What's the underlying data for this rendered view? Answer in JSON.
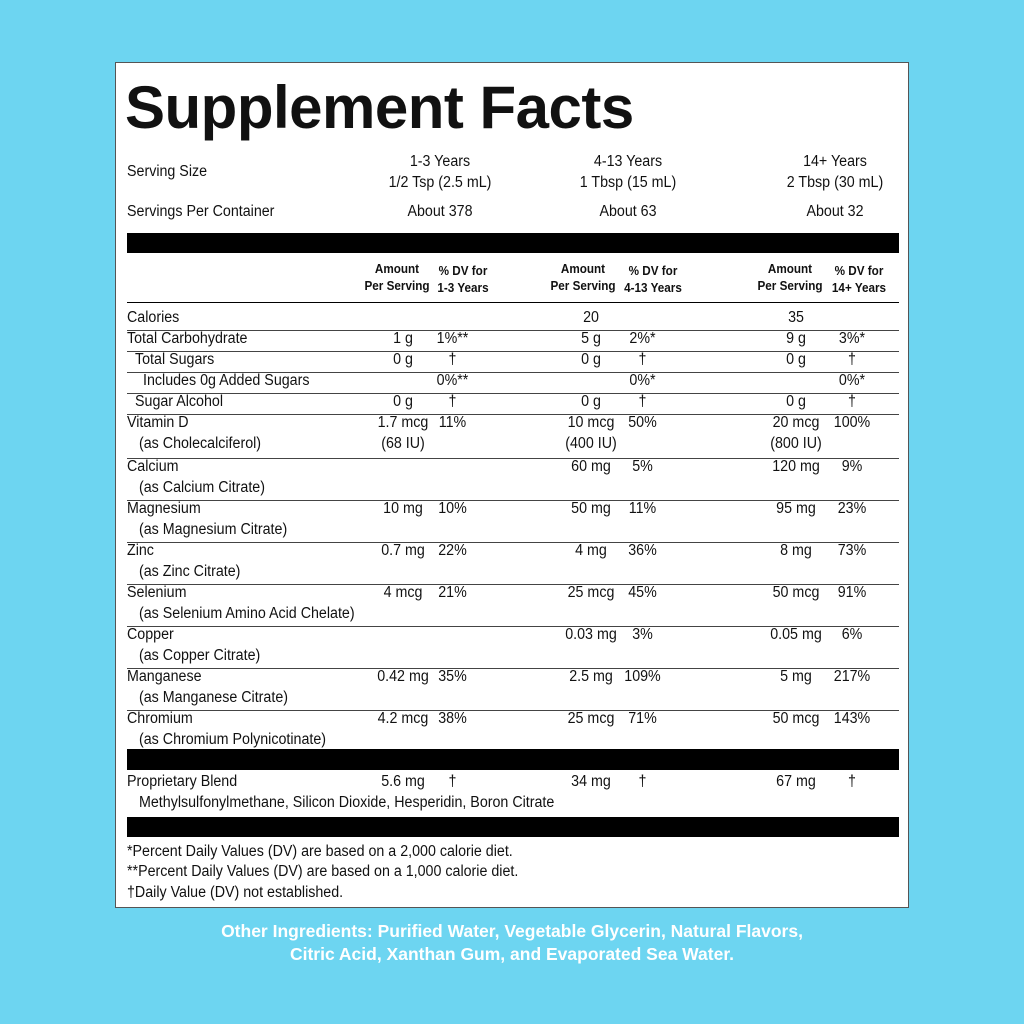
{
  "title": "Supplement Facts",
  "serving": {
    "size_label": "Serving Size",
    "per_container_label": "Servings Per Container",
    "groups": [
      {
        "age": "1-3 Years",
        "size": "1/2 Tsp (2.5 mL)",
        "per_container": "About 378"
      },
      {
        "age": "4-13 Years",
        "size": "1 Tbsp (15 mL)",
        "per_container": "About 63"
      },
      {
        "age": "14+ Years",
        "size": "2 Tbsp (30 mL)",
        "per_container": "About 32"
      }
    ]
  },
  "columns": [
    {
      "amount_1": "Amount",
      "amount_2": "Per Serving",
      "dv_1": "% DV for",
      "dv_2": "1-3 Years"
    },
    {
      "amount_1": "Amount",
      "amount_2": "Per Serving",
      "dv_1": "% DV for",
      "dv_2": "4-13 Years"
    },
    {
      "amount_1": "Amount",
      "amount_2": "Per Serving",
      "dv_1": "% DV for",
      "dv_2": "14+ Years"
    }
  ],
  "rows": [
    {
      "name": "Calories",
      "sub": "",
      "v": [
        "",
        "",
        "20",
        "",
        "35",
        ""
      ]
    },
    {
      "name": "Total Carbohydrate",
      "sub": "",
      "v": [
        "1 g",
        "1%**",
        "5 g",
        "2%*",
        "9 g",
        "3%*"
      ]
    },
    {
      "name": "Total Sugars",
      "sub": "",
      "v": [
        "0 g",
        "†",
        "0 g",
        "†",
        "0 g",
        "†"
      ]
    },
    {
      "name": "Includes 0g Added Sugars",
      "sub": "",
      "v": [
        "",
        "0%**",
        "",
        "0%*",
        "",
        "0%*"
      ]
    },
    {
      "name": "Sugar Alcohol",
      "sub": "",
      "v": [
        "0 g",
        "†",
        "0 g",
        "†",
        "0 g",
        "†"
      ]
    },
    {
      "name": "Vitamin D",
      "sub": "(as Cholecalciferol)",
      "v": [
        "1.7 mcg",
        "11%",
        "10 mcg",
        "50%",
        "20 mcg",
        "100%"
      ],
      "v2": [
        "(68 IU)",
        "(400 IU)",
        "(800 IU)"
      ]
    },
    {
      "name": "Calcium",
      "sub": "(as Calcium Citrate)",
      "v": [
        "",
        "",
        "60 mg",
        "5%",
        "120 mg",
        "9%"
      ]
    },
    {
      "name": "Magnesium",
      "sub": "(as Magnesium Citrate)",
      "v": [
        "10 mg",
        "10%",
        "50 mg",
        "11%",
        "95 mg",
        "23%"
      ]
    },
    {
      "name": "Zinc",
      "sub": "(as Zinc Citrate)",
      "v": [
        "0.7 mg",
        "22%",
        "4 mg",
        "36%",
        "8 mg",
        "73%"
      ]
    },
    {
      "name": "Selenium",
      "sub": "(as Selenium Amino Acid Chelate)",
      "v": [
        "4 mcg",
        "21%",
        "25 mcg",
        "45%",
        "50 mcg",
        "91%"
      ]
    },
    {
      "name": "Copper",
      "sub": "(as Copper Citrate)",
      "v": [
        "",
        "",
        "0.03 mg",
        "3%",
        "0.05 mg",
        "6%"
      ]
    },
    {
      "name": "Manganese",
      "sub": "(as Manganese Citrate)",
      "v": [
        "0.42 mg",
        "35%",
        "2.5 mg",
        "109%",
        "5 mg",
        "217%"
      ]
    },
    {
      "name": "Chromium",
      "sub": "(as Chromium Polynicotinate)",
      "v": [
        "4.2 mcg",
        "38%",
        "25 mcg",
        "71%",
        "50 mcg",
        "143%"
      ]
    }
  ],
  "blend": {
    "name": "Proprietary Blend",
    "ingredients": "Methylsulfonylmethane, Silicon Dioxide, Hesperidin, Boron Citrate",
    "v": [
      "5.6 mg",
      "†",
      "34 mg",
      "†",
      "67 mg",
      "†"
    ]
  },
  "footnotes": [
    "*Percent Daily Values (DV) are based on a 2,000 calorie diet.",
    "**Percent Daily Values (DV) are based on a 1,000 calorie diet.",
    "†Daily Value (DV) not established."
  ],
  "other_ingredients": {
    "line1": "Other Ingredients: Purified Water, Vegetable Glycerin, Natural Flavors,",
    "line2": "Citric Acid, Xanthan Gum, and Evaporated Sea Water."
  },
  "colors": {
    "background": "#6dd5f1",
    "panel": "#ffffff",
    "text": "#111111",
    "rule": "#000000"
  }
}
